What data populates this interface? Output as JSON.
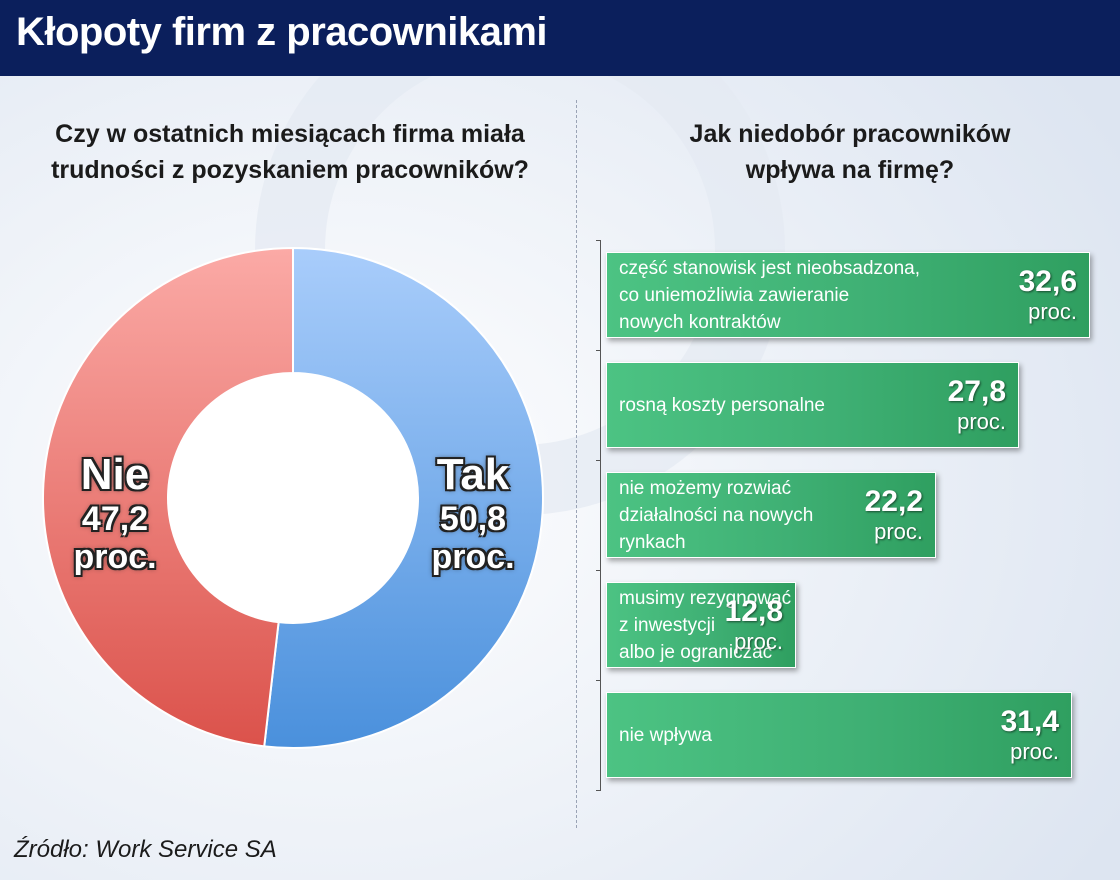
{
  "header": {
    "title": "Kłopoty firm z pracownikami"
  },
  "left": {
    "question_line1": "Czy w ostatnich miesiącach firma miała",
    "question_line2": "trudności z pozyskaniem pracowników?"
  },
  "right": {
    "question_line1": "Jak niedobór pracowników",
    "question_line2": "wpływa na firmę?"
  },
  "colors": {
    "header": "#0b1f5c",
    "tak": "#5b9fe3",
    "nie": "#e8706a",
    "bar": "#3fb074"
  },
  "chart_data": [
    {
      "type": "pie",
      "title": "Czy w ostatnich miesiącach firma miała trudności z pozyskaniem pracowników?",
      "slices": [
        {
          "label": "Tak",
          "value": 50.8,
          "value_text": "50,8",
          "unit": "proc."
        },
        {
          "label": "Nie",
          "value": 47.2,
          "value_text": "47,2",
          "unit": "proc."
        }
      ]
    },
    {
      "type": "bar",
      "title": "Jak niedobór pracowników wpływa na firmę?",
      "categories": [
        [
          "część stanowisk jest nieobsadzona,",
          "co uniemożliwia zawieranie",
          "nowych kontraktów"
        ],
        [
          "rosną koszty personalne"
        ],
        [
          "nie możemy rozwiać",
          "działalności na nowych",
          "rynkach"
        ],
        [
          "musimy rezygnować",
          "z inwestycji",
          "albo je ograniczać"
        ],
        [
          "nie wpływa"
        ]
      ],
      "values": [
        32.6,
        27.8,
        22.2,
        12.8,
        31.4
      ],
      "value_texts": [
        "32,6",
        "27,8",
        "22,2",
        "12,8",
        "31,4"
      ],
      "unit": "proc.",
      "xlim": [
        0,
        32.6
      ]
    }
  ],
  "source": "Źródło: Work Service SA"
}
